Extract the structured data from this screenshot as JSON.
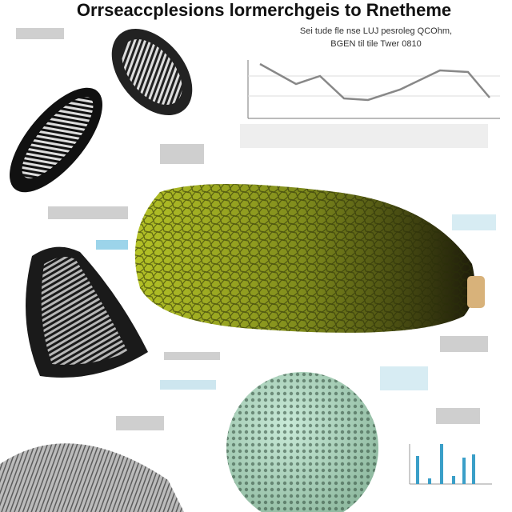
{
  "header": {
    "title": "Orrseaccplesions lormerchgeis to Rnetheme",
    "subtitle_lines": [
      "Sei tude fle nse LUJ pesroleg QCOhm,",
      "BGEN til tile Twer 0810"
    ]
  }
}
